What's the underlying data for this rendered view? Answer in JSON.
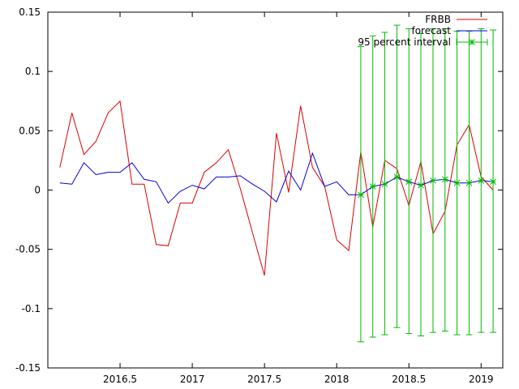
{
  "chart_data": {
    "type": "line",
    "title": "",
    "xlabel": "",
    "ylabel": "",
    "xlim": [
      2016.0,
      2019.15
    ],
    "ylim": [
      -0.15,
      0.15
    ],
    "grid": false,
    "legend_position": "top-right",
    "x_ticks": [
      {
        "value": 2016.5,
        "label": "2016.5"
      },
      {
        "value": 2017.0,
        "label": "2017"
      },
      {
        "value": 2017.5,
        "label": "2017.5"
      },
      {
        "value": 2018.0,
        "label": "2018"
      },
      {
        "value": 2018.5,
        "label": "2018.5"
      },
      {
        "value": 2019.0,
        "label": "2019"
      }
    ],
    "y_ticks": [
      {
        "value": 0.15,
        "label": "0.15"
      },
      {
        "value": 0.1,
        "label": "0.1"
      },
      {
        "value": 0.05,
        "label": "0.05"
      },
      {
        "value": 0.0,
        "label": "0"
      },
      {
        "value": -0.05,
        "label": "-0.05"
      },
      {
        "value": -0.1,
        "label": "-0.1"
      },
      {
        "value": -0.15,
        "label": "-0.15"
      }
    ],
    "series": [
      {
        "name": "FRBB",
        "color": "#dd0000",
        "x": [
          2016.083,
          2016.167,
          2016.25,
          2016.333,
          2016.417,
          2016.5,
          2016.583,
          2016.667,
          2016.75,
          2016.833,
          2016.917,
          2017.0,
          2017.083,
          2017.167,
          2017.25,
          2017.333,
          2017.417,
          2017.5,
          2017.583,
          2017.667,
          2017.75,
          2017.833,
          2017.917,
          2018.0,
          2018.083,
          2018.167,
          2018.25,
          2018.333,
          2018.417,
          2018.5,
          2018.583,
          2018.667,
          2018.75,
          2018.833,
          2018.917,
          2019.0,
          2019.083
        ],
        "y": [
          0.019,
          0.065,
          0.03,
          0.041,
          0.065,
          0.075,
          0.005,
          0.005,
          -0.046,
          -0.047,
          -0.011,
          -0.011,
          0.015,
          0.023,
          0.034,
          0.001,
          -0.036,
          -0.072,
          0.048,
          -0.002,
          0.071,
          0.019,
          0.003,
          -0.042,
          -0.051,
          0.032,
          -0.031,
          0.025,
          0.018,
          -0.013,
          0.024,
          -0.037,
          -0.018,
          0.038,
          0.055,
          0.011,
          0.0
        ]
      },
      {
        "name": "forecast",
        "color": "#0000dd",
        "x": [
          2016.083,
          2016.167,
          2016.25,
          2016.333,
          2016.417,
          2016.5,
          2016.583,
          2016.667,
          2016.75,
          2016.833,
          2016.917,
          2017.0,
          2017.083,
          2017.167,
          2017.25,
          2017.333,
          2017.417,
          2017.5,
          2017.583,
          2017.667,
          2017.75,
          2017.833,
          2017.917,
          2018.0,
          2018.083,
          2018.167,
          2018.25,
          2018.333,
          2018.417,
          2018.5,
          2018.583,
          2018.667,
          2018.75,
          2018.833,
          2018.917,
          2019.0,
          2019.083
        ],
        "y": [
          0.006,
          0.005,
          0.023,
          0.013,
          0.015,
          0.015,
          0.023,
          0.009,
          0.007,
          -0.011,
          -0.001,
          0.004,
          0.001,
          0.011,
          0.011,
          0.012,
          0.005,
          -0.001,
          -0.01,
          0.016,
          0.0,
          0.031,
          0.003,
          0.007,
          -0.004,
          -0.004,
          0.003,
          0.005,
          0.011,
          0.007,
          0.004,
          0.008,
          0.009,
          0.006,
          0.006,
          0.008,
          0.007
        ]
      },
      {
        "name": "95 percent interval",
        "color": "#00bb00",
        "type": "errorbars",
        "x": [
          2018.167,
          2018.25,
          2018.333,
          2018.417,
          2018.5,
          2018.583,
          2018.667,
          2018.75,
          2018.833,
          2018.917,
          2019.0,
          2019.083
        ],
        "y": [
          -0.004,
          0.003,
          0.005,
          0.011,
          0.007,
          0.004,
          0.008,
          0.009,
          0.006,
          0.006,
          0.008,
          0.007
        ],
        "low": [
          -0.128,
          -0.124,
          -0.122,
          -0.116,
          -0.121,
          -0.123,
          -0.12,
          -0.119,
          -0.122,
          -0.122,
          -0.12,
          -0.12
        ],
        "high": [
          0.121,
          0.13,
          0.133,
          0.139,
          0.136,
          0.132,
          0.136,
          0.136,
          0.134,
          0.134,
          0.136,
          0.135
        ]
      }
    ]
  }
}
